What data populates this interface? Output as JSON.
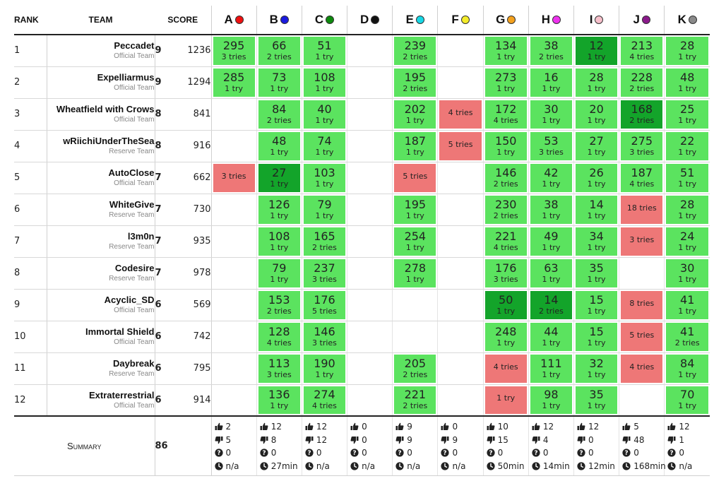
{
  "headers": {
    "rank": "RANK",
    "team": "TEAM",
    "score": "SCORE"
  },
  "problems": [
    {
      "label": "A",
      "color": "#f01010"
    },
    {
      "label": "B",
      "color": "#1a1adf"
    },
    {
      "label": "C",
      "color": "#0d8a0d"
    },
    {
      "label": "D",
      "color": "#111111"
    },
    {
      "label": "E",
      "color": "#17d8e6"
    },
    {
      "label": "F",
      "color": "#f4ec2a"
    },
    {
      "label": "G",
      "color": "#f4a11e"
    },
    {
      "label": "H",
      "color": "#ee32ee"
    },
    {
      "label": "I",
      "color": "#f7c0cb"
    },
    {
      "label": "J",
      "color": "#8b1a8b"
    },
    {
      "label": "K",
      "color": "#8a8a8a"
    }
  ],
  "rows": [
    {
      "rank": "1",
      "team": "Peccadet",
      "affiliation": "Official Team",
      "solved": "9",
      "penalty": "1236",
      "cells": [
        [
          "ok",
          "295",
          "3 tries"
        ],
        [
          "ok",
          "66",
          "2 tries"
        ],
        [
          "ok",
          "51",
          "1 try"
        ],
        null,
        [
          "ok",
          "239",
          "2 tries"
        ],
        null,
        [
          "ok",
          "134",
          "1 try"
        ],
        [
          "ok",
          "38",
          "2 tries"
        ],
        [
          "first",
          "12",
          "1 try"
        ],
        [
          "ok",
          "213",
          "4 tries"
        ],
        [
          "ok",
          "28",
          "1 try"
        ]
      ]
    },
    {
      "rank": "2",
      "team": "Expelliarmus",
      "affiliation": "Official Team",
      "solved": "9",
      "penalty": "1294",
      "cells": [
        [
          "ok",
          "285",
          "1 try"
        ],
        [
          "ok",
          "73",
          "1 try"
        ],
        [
          "ok",
          "108",
          "1 try"
        ],
        null,
        [
          "ok",
          "195",
          "2 tries"
        ],
        null,
        [
          "ok",
          "273",
          "1 try"
        ],
        [
          "ok",
          "16",
          "1 try"
        ],
        [
          "ok",
          "28",
          "1 try"
        ],
        [
          "ok",
          "228",
          "2 tries"
        ],
        [
          "ok",
          "48",
          "1 try"
        ]
      ]
    },
    {
      "rank": "3",
      "team": "Wheatfield with Crows",
      "affiliation": "Official Team",
      "solved": "8",
      "penalty": "841",
      "cells": [
        null,
        [
          "ok",
          "84",
          "2 tries"
        ],
        [
          "ok",
          "40",
          "1 try"
        ],
        null,
        [
          "ok",
          "202",
          "1 try"
        ],
        [
          "fail",
          "",
          "4 tries"
        ],
        [
          "ok",
          "172",
          "4 tries"
        ],
        [
          "ok",
          "30",
          "1 try"
        ],
        [
          "ok",
          "20",
          "1 try"
        ],
        [
          "first",
          "168",
          "2 tries"
        ],
        [
          "ok",
          "25",
          "1 try"
        ]
      ]
    },
    {
      "rank": "4",
      "team": "wRiichiUnderTheSea",
      "affiliation": "Reserve Team",
      "solved": "8",
      "penalty": "916",
      "cells": [
        null,
        [
          "ok",
          "48",
          "1 try"
        ],
        [
          "ok",
          "74",
          "1 try"
        ],
        null,
        [
          "ok",
          "187",
          "1 try"
        ],
        [
          "fail",
          "",
          "5 tries"
        ],
        [
          "ok",
          "150",
          "1 try"
        ],
        [
          "ok",
          "53",
          "3 tries"
        ],
        [
          "ok",
          "27",
          "1 try"
        ],
        [
          "ok",
          "275",
          "3 tries"
        ],
        [
          "ok",
          "22",
          "1 try"
        ]
      ]
    },
    {
      "rank": "5",
      "team": "AutoClose",
      "affiliation": "Official Team",
      "solved": "7",
      "penalty": "662",
      "cells": [
        [
          "fail",
          "",
          "3 tries"
        ],
        [
          "first",
          "27",
          "1 try"
        ],
        [
          "ok",
          "103",
          "1 try"
        ],
        null,
        [
          "fail",
          "",
          "5 tries"
        ],
        null,
        [
          "ok",
          "146",
          "2 tries"
        ],
        [
          "ok",
          "42",
          "1 try"
        ],
        [
          "ok",
          "26",
          "1 try"
        ],
        [
          "ok",
          "187",
          "4 tries"
        ],
        [
          "ok",
          "51",
          "1 try"
        ]
      ]
    },
    {
      "rank": "6",
      "team": "WhiteGive",
      "affiliation": "Reserve Team",
      "solved": "7",
      "penalty": "730",
      "cells": [
        null,
        [
          "ok",
          "126",
          "1 try"
        ],
        [
          "ok",
          "79",
          "1 try"
        ],
        null,
        [
          "ok",
          "195",
          "1 try"
        ],
        null,
        [
          "ok",
          "230",
          "2 tries"
        ],
        [
          "ok",
          "38",
          "1 try"
        ],
        [
          "ok",
          "14",
          "1 try"
        ],
        [
          "fail",
          "",
          "18 tries"
        ],
        [
          "ok",
          "28",
          "1 try"
        ]
      ]
    },
    {
      "rank": "7",
      "team": "l3m0n",
      "affiliation": "Reserve Team",
      "solved": "7",
      "penalty": "935",
      "cells": [
        null,
        [
          "ok",
          "108",
          "1 try"
        ],
        [
          "ok",
          "165",
          "2 tries"
        ],
        null,
        [
          "ok",
          "254",
          "1 try"
        ],
        null,
        [
          "ok",
          "221",
          "4 tries"
        ],
        [
          "ok",
          "49",
          "1 try"
        ],
        [
          "ok",
          "34",
          "1 try"
        ],
        [
          "fail",
          "",
          "3 tries"
        ],
        [
          "ok",
          "24",
          "1 try"
        ]
      ]
    },
    {
      "rank": "8",
      "team": "Codesire",
      "affiliation": "Reserve Team",
      "solved": "7",
      "penalty": "978",
      "cells": [
        null,
        [
          "ok",
          "79",
          "1 try"
        ],
        [
          "ok",
          "237",
          "3 tries"
        ],
        null,
        [
          "ok",
          "278",
          "1 try"
        ],
        null,
        [
          "ok",
          "176",
          "3 tries"
        ],
        [
          "ok",
          "63",
          "1 try"
        ],
        [
          "ok",
          "35",
          "1 try"
        ],
        null,
        [
          "ok",
          "30",
          "1 try"
        ]
      ]
    },
    {
      "rank": "9",
      "team": "Acyclic_SD",
      "affiliation": "Official Team",
      "solved": "6",
      "penalty": "569",
      "cells": [
        null,
        [
          "ok",
          "153",
          "2 tries"
        ],
        [
          "ok",
          "176",
          "5 tries"
        ],
        null,
        null,
        null,
        [
          "first",
          "50",
          "1 try"
        ],
        [
          "first",
          "14",
          "2 tries"
        ],
        [
          "ok",
          "15",
          "1 try"
        ],
        [
          "fail",
          "",
          "8 tries"
        ],
        [
          "ok",
          "41",
          "1 try"
        ]
      ]
    },
    {
      "rank": "10",
      "team": "Immortal Shield",
      "affiliation": "Official Team",
      "solved": "6",
      "penalty": "742",
      "cells": [
        null,
        [
          "ok",
          "128",
          "4 tries"
        ],
        [
          "ok",
          "146",
          "3 tries"
        ],
        null,
        null,
        null,
        [
          "ok",
          "248",
          "1 try"
        ],
        [
          "ok",
          "44",
          "1 try"
        ],
        [
          "ok",
          "15",
          "1 try"
        ],
        [
          "fail",
          "",
          "5 tries"
        ],
        [
          "ok",
          "41",
          "2 tries"
        ]
      ]
    },
    {
      "rank": "11",
      "team": "Daybreak",
      "affiliation": "Reserve Team",
      "solved": "6",
      "penalty": "795",
      "cells": [
        null,
        [
          "ok",
          "113",
          "3 tries"
        ],
        [
          "ok",
          "190",
          "1 try"
        ],
        null,
        [
          "ok",
          "205",
          "2 tries"
        ],
        null,
        [
          "fail",
          "",
          "4 tries"
        ],
        [
          "ok",
          "111",
          "1 try"
        ],
        [
          "ok",
          "32",
          "1 try"
        ],
        [
          "fail",
          "",
          "4 tries"
        ],
        [
          "ok",
          "84",
          "1 try"
        ]
      ]
    },
    {
      "rank": "12",
      "team": "Extraterrestrial",
      "affiliation": "Official Team",
      "solved": "6",
      "penalty": "914",
      "cells": [
        null,
        [
          "ok",
          "136",
          "1 try"
        ],
        [
          "ok",
          "274",
          "4 tries"
        ],
        null,
        [
          "ok",
          "221",
          "2 tries"
        ],
        null,
        [
          "fail",
          "",
          "1 try"
        ],
        [
          "ok",
          "98",
          "1 try"
        ],
        [
          "ok",
          "35",
          "1 try"
        ],
        null,
        [
          "ok",
          "70",
          "1 try"
        ]
      ]
    }
  ],
  "summary": {
    "label": "Summary",
    "total": "86",
    "cells": [
      {
        "up": "2",
        "down": "5",
        "pending": "0",
        "first": "n/a"
      },
      {
        "up": "12",
        "down": "8",
        "pending": "0",
        "first": "27min"
      },
      {
        "up": "12",
        "down": "12",
        "pending": "0",
        "first": "n/a"
      },
      {
        "up": "0",
        "down": "0",
        "pending": "0",
        "first": "n/a"
      },
      {
        "up": "9",
        "down": "9",
        "pending": "0",
        "first": "n/a"
      },
      {
        "up": "0",
        "down": "9",
        "pending": "0",
        "first": "n/a"
      },
      {
        "up": "10",
        "down": "15",
        "pending": "0",
        "first": "50min"
      },
      {
        "up": "12",
        "down": "4",
        "pending": "0",
        "first": "14min"
      },
      {
        "up": "12",
        "down": "0",
        "pending": "0",
        "first": "12min"
      },
      {
        "up": "5",
        "down": "48",
        "pending": "0",
        "first": "168min"
      },
      {
        "up": "12",
        "down": "1",
        "pending": "0",
        "first": "n/a"
      }
    ],
    "icons": {
      "up": "thumbs-up-icon",
      "down": "thumbs-down-icon",
      "pending": "question-icon",
      "first": "clock-icon"
    }
  }
}
